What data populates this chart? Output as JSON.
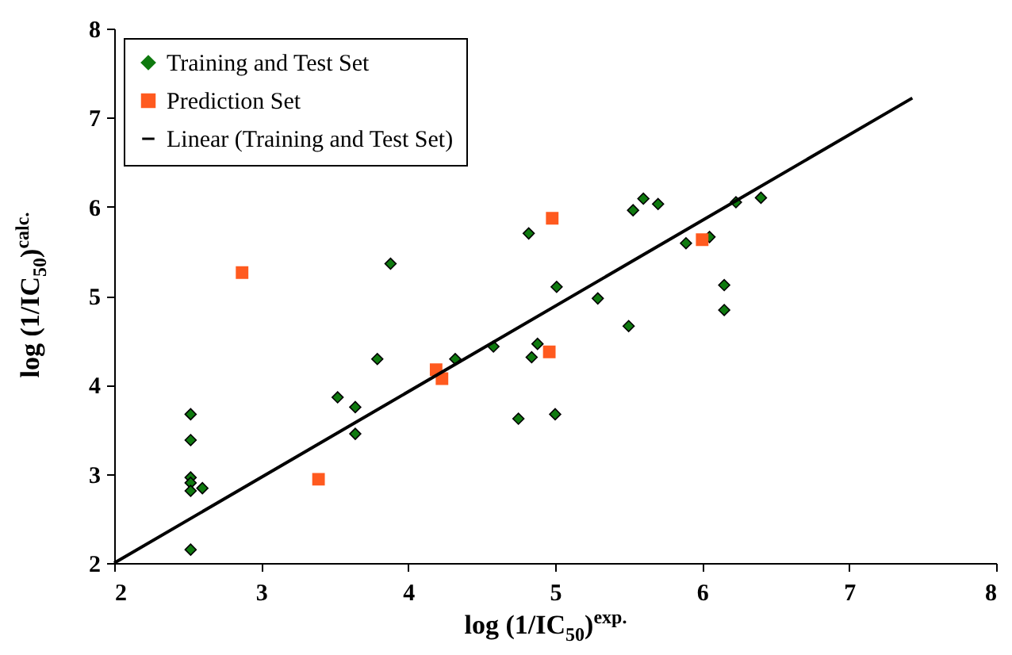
{
  "chart_data": {
    "type": "scatter",
    "xlabel": "log (1/IC$_{50}$)$^{exp.}$",
    "ylabel": "log (1/IC$_{50}$)$^{calc.}$",
    "xlim": [
      2,
      8
    ],
    "xticks": [
      2,
      3,
      4,
      5,
      6,
      7,
      8
    ],
    "ylim": [
      2,
      8
    ],
    "yticks": [
      2,
      3,
      4,
      5,
      6,
      7,
      8
    ],
    "grid": false,
    "legend": "top left",
    "series": [
      {
        "name": "Training and Test Set",
        "color": "#0f7a0f",
        "marker": "diamond",
        "x": [
          2.52,
          2.52,
          2.52,
          2.52,
          2.52,
          2.6,
          2.52,
          3.52,
          3.64,
          3.64,
          3.79,
          3.88,
          4.32,
          4.58,
          4.84,
          4.88,
          4.75,
          5.0,
          5.01,
          4.82,
          5.29,
          5.5,
          5.53,
          5.6,
          5.7,
          5.89,
          6.05,
          6.15,
          6.15,
          6.23,
          6.4
        ],
        "values": [
          3.67,
          3.38,
          2.96,
          2.9,
          2.81,
          2.84,
          2.15,
          3.86,
          3.75,
          3.45,
          4.29,
          5.36,
          4.29,
          4.43,
          4.31,
          4.46,
          3.62,
          3.67,
          5.1,
          5.7,
          4.97,
          4.66,
          5.96,
          6.09,
          6.03,
          5.59,
          5.66,
          5.12,
          4.84,
          6.05,
          6.1
        ]
      },
      {
        "name": "Prediction Set",
        "color": "#ff5a1f",
        "marker": "square",
        "x": [
          2.87,
          3.39,
          4.19,
          4.23,
          4.98,
          4.96,
          6.0
        ],
        "values": [
          5.26,
          2.94,
          4.17,
          4.07,
          5.87,
          4.37,
          5.63
        ]
      },
      {
        "name": "Linear (Training and Test Set)",
        "type": "line",
        "color": "#000000",
        "x": [
          2,
          7.43
        ],
        "values": [
          2,
          7.22
        ]
      }
    ]
  }
}
